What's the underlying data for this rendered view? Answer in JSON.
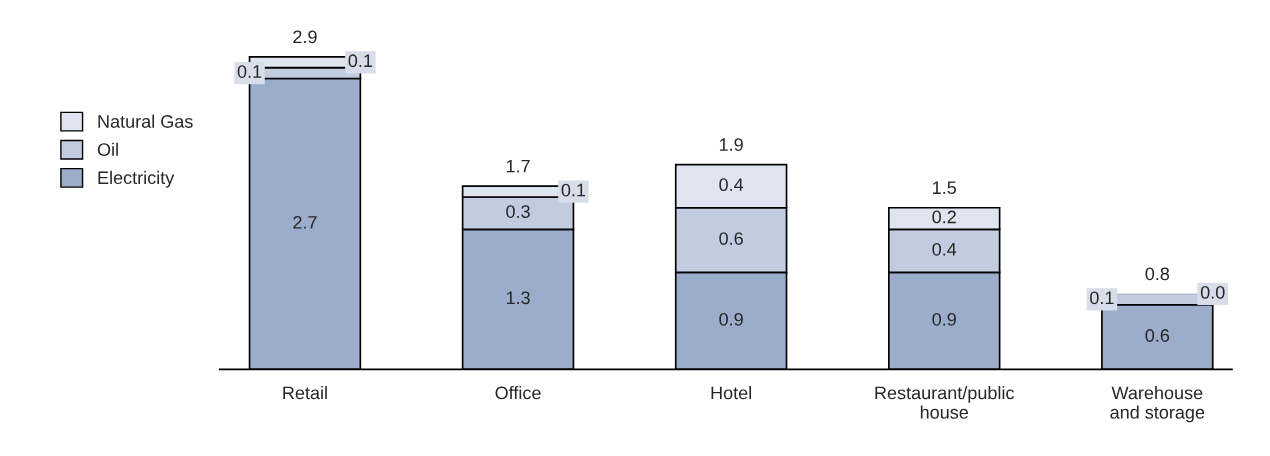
{
  "chart_data": {
    "type": "bar",
    "stacked": true,
    "categories": [
      "Retail",
      "Office",
      "Hotel",
      "Restaurant/public house",
      "Warehouse and storage"
    ],
    "series": [
      {
        "name": "Electricity",
        "color": "#9cadcc",
        "values": [
          2.7,
          1.3,
          0.9,
          0.9,
          0.6
        ],
        "value_labels": [
          "2.7",
          "1.3",
          "0.9",
          "0.9",
          "0.6"
        ]
      },
      {
        "name": "Oil",
        "color": "#c2cce0",
        "values": [
          0.1,
          0.3,
          0.6,
          0.4,
          0.1
        ],
        "value_labels": [
          "0.1",
          "0.3",
          "0.6",
          "0.4",
          "0.1"
        ]
      },
      {
        "name": "Natural Gas",
        "color": "#dfe5f0",
        "values": [
          0.1,
          0.1,
          0.4,
          0.2,
          0.0
        ],
        "value_labels": [
          "0.1",
          "0.1",
          "0.4",
          "0.2",
          "0.0"
        ]
      }
    ],
    "totals": [
      "2.9",
      "1.7",
      "1.9",
      "1.5",
      "0.8"
    ],
    "legend": "left",
    "grid": false
  }
}
